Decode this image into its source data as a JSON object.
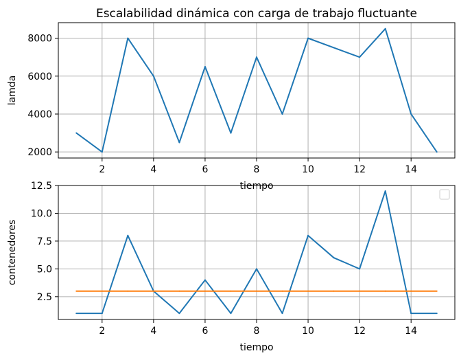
{
  "chart_data": [
    {
      "type": "line",
      "title": "Escalabilidad dinámica con carga de trabajo fluctuante",
      "xlabel": "tiempo",
      "ylabel": "lamda",
      "x": [
        1,
        2,
        3,
        4,
        5,
        6,
        7,
        8,
        9,
        10,
        11,
        12,
        13,
        14,
        15
      ],
      "series": [
        {
          "values": [
            3000,
            2000,
            8000,
            6000,
            2500,
            6500,
            3000,
            7000,
            4000,
            8000,
            7500,
            7000,
            8500,
            4000,
            2000
          ],
          "color": "#1f77b4"
        }
      ],
      "xlim": [
        0.3,
        15.7
      ],
      "ylim": [
        1680,
        8820
      ],
      "xticks": [
        2,
        4,
        6,
        8,
        10,
        12,
        14
      ],
      "xtick_labels": [
        "2",
        "4",
        "6",
        "8",
        "10",
        "12",
        "14"
      ],
      "yticks": [
        2000,
        4000,
        6000,
        8000
      ],
      "ytick_labels": [
        "2000",
        "4000",
        "6000",
        "8000"
      ],
      "grid": true
    },
    {
      "type": "line",
      "title": "",
      "xlabel": "tiempo",
      "ylabel": "contenedores",
      "x": [
        1,
        2,
        3,
        4,
        5,
        6,
        7,
        8,
        9,
        10,
        11,
        12,
        13,
        14,
        15
      ],
      "series": [
        {
          "values": [
            1,
            1,
            8,
            3,
            1,
            4,
            1,
            5,
            1,
            8,
            6,
            5,
            12,
            1,
            1
          ],
          "color": "#1f77b4"
        },
        {
          "values": [
            3,
            3,
            3,
            3,
            3,
            3,
            3,
            3,
            3,
            3,
            3,
            3,
            3,
            3,
            3
          ],
          "color": "#ff7f0e"
        }
      ],
      "xlim": [
        0.3,
        15.7
      ],
      "ylim": [
        0.45,
        12.5
      ],
      "xticks": [
        2,
        4,
        6,
        8,
        10,
        12,
        14
      ],
      "xtick_labels": [
        "2",
        "4",
        "6",
        "8",
        "10",
        "12",
        "14"
      ],
      "yticks": [
        2.5,
        5.0,
        7.5,
        10.0,
        12.5
      ],
      "ytick_labels": [
        "2.5",
        "5.0",
        "7.5",
        "10.0",
        "12.5"
      ],
      "grid": true,
      "legend": "top-right (empty)"
    }
  ]
}
